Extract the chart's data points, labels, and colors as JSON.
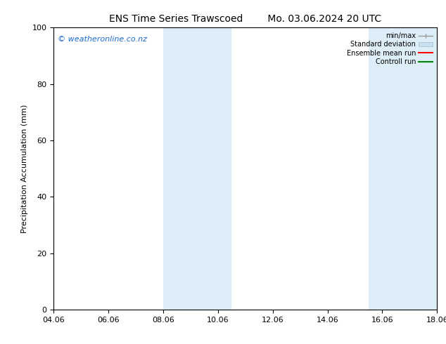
{
  "title_left": "ENS Time Series Trawscoed",
  "title_right": "Mo. 03.06.2024 20 UTC",
  "ylabel": "Precipitation Accumulation (mm)",
  "watermark": "© weatheronline.co.nz",
  "ylim": [
    0,
    100
  ],
  "yticks": [
    0,
    20,
    40,
    60,
    80,
    100
  ],
  "xtick_labels": [
    "04.06",
    "06.06",
    "08.06",
    "10.06",
    "12.06",
    "14.06",
    "16.06",
    "18.06"
  ],
  "xlim_min": 0,
  "xlim_max": 14,
  "shaded_bands": [
    {
      "x_start": 4,
      "x_end": 6.5
    },
    {
      "x_start": 11.5,
      "x_end": 14
    }
  ],
  "band_color": "#ddeef8",
  "background_color": "#ffffff",
  "title_fontsize": 10,
  "label_fontsize": 8,
  "tick_fontsize": 8,
  "watermark_color": "#1a6bcc",
  "legend_labels": [
    "min/max",
    "Standard deviation",
    "Ensemble mean run",
    "Controll run"
  ],
  "legend_colors": [
    "#999999",
    "#c8dff0",
    "#ff0000",
    "#008000"
  ]
}
